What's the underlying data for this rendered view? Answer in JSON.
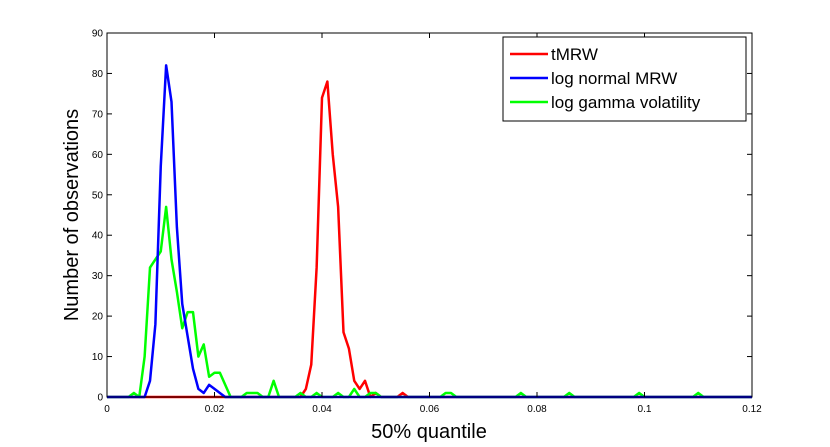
{
  "chart_data": {
    "type": "line",
    "title": "",
    "xlabel": "50% quantile",
    "ylabel": "Number of observations",
    "xlim": [
      0,
      0.12
    ],
    "ylim": [
      0,
      90
    ],
    "xticks": [
      0,
      0.02,
      0.04,
      0.06,
      0.08,
      0.1,
      0.12
    ],
    "yticks": [
      0,
      10,
      20,
      30,
      40,
      50,
      60,
      70,
      80,
      90
    ],
    "xtick_labels": [
      "0",
      "0.02",
      "0.04",
      "0.06",
      "0.08",
      "0.1",
      "0.12"
    ],
    "ytick_labels": [
      "0",
      "10",
      "20",
      "30",
      "40",
      "50",
      "60",
      "70",
      "80",
      "90"
    ],
    "grid": false,
    "legend_position": "top-right",
    "series": [
      {
        "name": "tMRW",
        "color": "#ff0000",
        "x": [
          0,
          0.035,
          0.036,
          0.037,
          0.038,
          0.039,
          0.04,
          0.041,
          0.042,
          0.043,
          0.044,
          0.045,
          0.046,
          0.047,
          0.048,
          0.049,
          0.05,
          0.051,
          0.052,
          0.053,
          0.054,
          0.055,
          0.056,
          0.12
        ],
        "y": [
          0,
          0,
          0,
          2,
          8,
          32,
          74,
          78,
          60,
          47,
          16,
          12,
          4,
          2,
          4,
          0,
          1,
          0,
          0,
          0,
          0,
          1,
          0,
          0
        ]
      },
      {
        "name": "log normal MRW",
        "color": "#0000ff",
        "x": [
          0,
          0.006,
          0.007,
          0.008,
          0.009,
          0.01,
          0.011,
          0.012,
          0.013,
          0.014,
          0.015,
          0.016,
          0.017,
          0.018,
          0.019,
          0.02,
          0.021,
          0.022,
          0.023,
          0.024,
          0.12
        ],
        "y": [
          0,
          0,
          0,
          4,
          18,
          57,
          82,
          73,
          42,
          23,
          15,
          7,
          2,
          1,
          3,
          2,
          1,
          0,
          0,
          0,
          0
        ]
      },
      {
        "name": "log gamma volatility",
        "color": "#00ff00",
        "x": [
          0,
          0.004,
          0.005,
          0.006,
          0.007,
          0.008,
          0.009,
          0.01,
          0.011,
          0.012,
          0.013,
          0.014,
          0.015,
          0.016,
          0.017,
          0.018,
          0.019,
          0.02,
          0.021,
          0.022,
          0.023,
          0.024,
          0.025,
          0.026,
          0.027,
          0.028,
          0.029,
          0.03,
          0.031,
          0.032,
          0.033,
          0.034,
          0.035,
          0.036,
          0.037,
          0.038,
          0.039,
          0.04,
          0.041,
          0.042,
          0.043,
          0.044,
          0.045,
          0.046,
          0.047,
          0.048,
          0.049,
          0.05,
          0.051,
          0.052,
          0.053,
          0.054,
          0.055,
          0.056,
          0.062,
          0.063,
          0.064,
          0.065,
          0.076,
          0.077,
          0.078,
          0.085,
          0.086,
          0.087,
          0.098,
          0.099,
          0.1,
          0.109,
          0.11,
          0.111,
          0.12
        ],
        "y": [
          0,
          0,
          1,
          0,
          10,
          32,
          34,
          36,
          47,
          34,
          26,
          17,
          21,
          21,
          10,
          13,
          5,
          6,
          6,
          3,
          0,
          0,
          0,
          1,
          1,
          1,
          0,
          0,
          4,
          0,
          0,
          0,
          0,
          1,
          0,
          0,
          1,
          0,
          0,
          0,
          1,
          0,
          0,
          2,
          0,
          0,
          1,
          1,
          0,
          0,
          0,
          0,
          0,
          0,
          0,
          1,
          1,
          0,
          0,
          1,
          0,
          0,
          1,
          0,
          0,
          1,
          0,
          0,
          1,
          0,
          0
        ]
      }
    ]
  }
}
